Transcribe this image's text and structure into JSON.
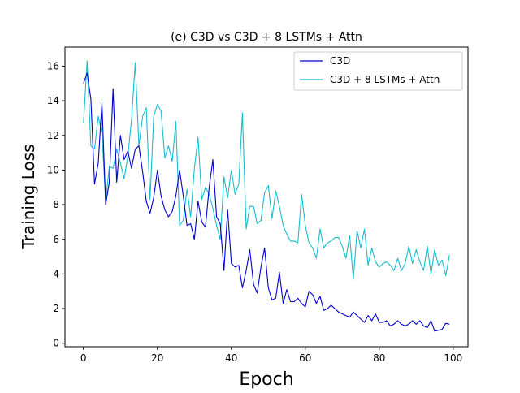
{
  "chart_data": {
    "type": "line",
    "title": "(e) C3D vs C3D + 8 LSTMs + Attn",
    "xlabel": "Epoch",
    "ylabel": "Training Loss",
    "xlim": [
      -5,
      104
    ],
    "ylim": [
      -0.2,
      17.1
    ],
    "xticks": [
      0,
      20,
      40,
      60,
      80,
      100
    ],
    "yticks": [
      0,
      2,
      4,
      6,
      8,
      10,
      12,
      14,
      16
    ],
    "grid": false,
    "legend_position": "top-right",
    "series": [
      {
        "name": "C3D",
        "color": "#0000cc",
        "values": [
          15.0,
          15.6,
          14.1,
          9.2,
          10.4,
          13.9,
          8.0,
          9.3,
          14.7,
          9.3,
          12.0,
          10.6,
          11.1,
          10.1,
          11.2,
          11.4,
          9.9,
          8.2,
          7.5,
          8.4,
          10.0,
          8.5,
          7.7,
          7.3,
          7.6,
          8.5,
          10.0,
          8.5,
          6.8,
          6.9,
          6.0,
          8.2,
          7.0,
          6.7,
          9.0,
          10.6,
          7.3,
          6.9,
          4.2,
          7.7,
          4.6,
          4.4,
          4.5,
          3.2,
          4.2,
          5.4,
          3.4,
          2.9,
          4.4,
          5.5,
          3.2,
          2.5,
          2.6,
          4.1,
          2.3,
          3.1,
          2.4,
          2.4,
          2.6,
          2.3,
          2.1,
          3.0,
          2.8,
          2.3,
          2.7,
          1.9,
          2.0,
          2.2,
          2.0,
          1.8,
          1.7,
          1.6,
          1.5,
          1.8,
          1.6,
          1.4,
          1.2,
          1.6,
          1.3,
          1.7,
          1.2,
          1.2,
          1.3,
          1.0,
          1.1,
          1.3,
          1.1,
          1.0,
          1.1,
          1.3,
          1.1,
          1.3,
          1.0,
          0.9,
          1.3,
          0.7,
          0.75,
          0.8,
          1.15,
          1.1
        ]
      },
      {
        "name": "C3D + 8 LSTMs + Attn",
        "color": "#17becf",
        "values": [
          12.7,
          16.3,
          11.4,
          11.2,
          13.1,
          12.1,
          8.2,
          10.2,
          10.1,
          11.2,
          10.4,
          9.5,
          10.8,
          12.9,
          16.2,
          11.4,
          13.1,
          13.6,
          8.3,
          13.1,
          13.8,
          13.4,
          10.7,
          11.4,
          10.5,
          12.8,
          6.8,
          7.1,
          8.9,
          7.3,
          10.1,
          11.9,
          8.3,
          9.0,
          8.6,
          7.8,
          6.8,
          6.0,
          9.6,
          8.4,
          10.0,
          8.6,
          9.2,
          13.3,
          6.6,
          7.9,
          7.9,
          6.9,
          7.1,
          8.7,
          9.1,
          7.2,
          8.8,
          7.9,
          6.8,
          6.3,
          5.9,
          5.9,
          5.8,
          8.6,
          6.8,
          5.8,
          5.5,
          4.9,
          6.6,
          5.5,
          5.8,
          5.9,
          6.1,
          6.1,
          5.6,
          4.9,
          6.2,
          3.7,
          6.5,
          5.5,
          6.6,
          4.5,
          5.5,
          4.7,
          4.4,
          4.6,
          4.7,
          4.5,
          4.2,
          4.9,
          4.2,
          4.6,
          5.6,
          4.6,
          5.4,
          4.7,
          4.2,
          5.6,
          4.0,
          5.4,
          4.5,
          4.8,
          3.9,
          5.1
        ]
      }
    ]
  }
}
